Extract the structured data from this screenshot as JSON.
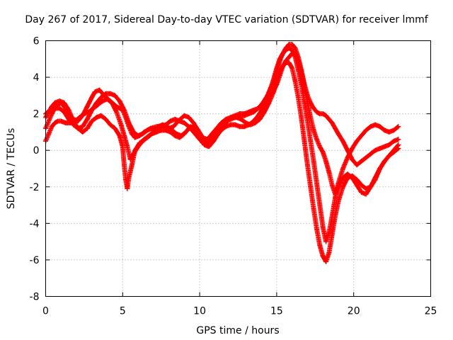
{
  "chart_data": {
    "type": "scatter",
    "title": "Day 267 of 2017, Sidereal Day-to-day VTEC variation (SDTVAR) for receiver lmmf",
    "xlabel": "GPS time / hours",
    "ylabel": "SDTVAR / TECUs",
    "xlim": [
      0,
      25
    ],
    "ylim": [
      -8,
      6
    ],
    "xticks": [
      "0",
      "5",
      "10",
      "15",
      "20",
      "25"
    ],
    "yticks": [
      "-8",
      "-6",
      "-4",
      "-2",
      "0",
      "2",
      "4",
      "6"
    ],
    "grid": true,
    "marker": "+",
    "color": "#ff0000",
    "series": [
      {
        "x": [
          0.0,
          0.2,
          0.4,
          0.6,
          0.8,
          1.0,
          1.2,
          1.5,
          1.8,
          2.1,
          2.4,
          2.7,
          3.0,
          3.2,
          3.5,
          3.8,
          4.2,
          4.6,
          5.0,
          5.2,
          5.4,
          5.6,
          5.8,
          6.1,
          6.4,
          6.8,
          7.2,
          7.6,
          8.0,
          8.3,
          8.6,
          9.0,
          9.3,
          9.6,
          9.9,
          10.2,
          10.5,
          10.8,
          11.1,
          11.4,
          11.7,
          12.0,
          12.3,
          12.6,
          12.9,
          13.2,
          13.5,
          13.8,
          14.1,
          14.4,
          14.7,
          15.0,
          15.2,
          15.4,
          15.6,
          15.8,
          16.0,
          16.2,
          16.4,
          16.6,
          16.8,
          17.0,
          17.2,
          17.4,
          17.6,
          17.8,
          18.0,
          18.2,
          18.4,
          18.6,
          18.8,
          19.0,
          19.3,
          19.6,
          19.9,
          20.2,
          20.5,
          20.8,
          21.1,
          21.4,
          21.7,
          22.0,
          22.3,
          22.6,
          22.9
        ],
        "y": [
          1.2,
          1.6,
          2.0,
          2.3,
          2.5,
          2.6,
          2.4,
          2.0,
          1.7,
          1.6,
          1.9,
          2.4,
          2.9,
          3.2,
          3.3,
          3.0,
          2.7,
          2.4,
          2.2,
          1.8,
          1.3,
          0.9,
          0.7,
          0.8,
          1.0,
          1.2,
          1.3,
          1.3,
          1.2,
          1.3,
          1.6,
          1.9,
          1.8,
          1.5,
          1.1,
          0.7,
          0.6,
          0.9,
          1.2,
          1.5,
          1.7,
          1.8,
          1.9,
          2.0,
          2.0,
          2.1,
          2.2,
          2.3,
          2.5,
          2.9,
          3.6,
          4.5,
          5.0,
          5.3,
          5.6,
          5.8,
          5.8,
          5.6,
          5.1,
          4.4,
          3.6,
          3.0,
          2.6,
          2.3,
          2.1,
          2.0,
          2.0,
          1.9,
          1.7,
          1.5,
          1.2,
          0.9,
          0.5,
          0.0,
          -0.5,
          -0.8,
          -0.6,
          -0.4,
          -0.2,
          0.0,
          0.1,
          0.2,
          0.3,
          0.5,
          0.6
        ]
      },
      {
        "x": [
          0.0,
          0.2,
          0.4,
          0.6,
          0.8,
          1.0,
          1.3,
          1.6,
          1.9,
          2.2,
          2.5,
          2.8,
          3.1,
          3.4,
          3.7,
          4.0,
          4.3,
          4.6,
          4.9,
          5.1,
          5.3,
          5.5,
          5.7,
          6.0,
          6.3,
          6.6,
          6.9,
          7.2,
          7.5,
          7.8,
          8.1,
          8.4,
          8.7,
          9.0,
          9.3,
          9.6,
          9.9,
          10.2,
          10.5,
          10.8,
          11.1,
          11.4,
          11.7,
          12.0,
          12.3,
          12.6,
          12.9,
          13.2,
          13.5,
          13.8,
          14.1,
          14.4,
          14.7,
          15.0,
          15.2,
          15.4,
          15.6,
          15.8,
          16.0,
          16.2,
          16.4,
          16.6,
          16.8,
          17.0,
          17.2,
          17.4,
          17.6,
          17.8,
          18.0,
          18.2,
          18.4,
          18.6,
          18.8,
          19.0,
          19.3,
          19.6,
          19.9,
          20.2,
          20.5,
          20.8,
          21.1,
          21.4,
          21.7,
          22.0,
          22.3,
          22.6,
          22.9
        ],
        "y": [
          0.5,
          0.9,
          1.3,
          1.5,
          1.6,
          1.6,
          1.5,
          1.5,
          1.6,
          1.8,
          2.0,
          2.1,
          2.3,
          2.5,
          2.7,
          2.8,
          2.6,
          2.1,
          1.4,
          0.8,
          0.2,
          -0.5,
          -0.2,
          0.2,
          0.5,
          0.7,
          0.9,
          1.0,
          1.1,
          1.1,
          1.0,
          0.8,
          0.7,
          0.9,
          1.2,
          1.3,
          1.0,
          0.5,
          0.3,
          0.5,
          0.8,
          1.1,
          1.3,
          1.4,
          1.4,
          1.3,
          1.3,
          1.4,
          1.6,
          1.9,
          2.3,
          2.7,
          3.1,
          3.6,
          4.1,
          4.6,
          4.9,
          5.1,
          5.3,
          5.3,
          4.9,
          4.3,
          3.5,
          2.6,
          1.8,
          1.1,
          0.6,
          0.2,
          -0.1,
          -0.6,
          -1.2,
          -1.9,
          -2.4,
          -2.0,
          -1.5,
          -1.3,
          -1.5,
          -1.9,
          -2.3,
          -2.4,
          -2.0,
          -1.5,
          -1.0,
          -0.6,
          -0.3,
          0.0,
          0.3
        ]
      },
      {
        "x": [
          0.0,
          0.2,
          0.4,
          0.6,
          0.9,
          1.2,
          1.5,
          1.8,
          2.1,
          2.4,
          2.7,
          3.0,
          3.3,
          3.6,
          3.9,
          4.2,
          4.5,
          4.8,
          5.0,
          5.1,
          5.2,
          5.3,
          5.4,
          5.6,
          5.8,
          6.1,
          6.4,
          6.7,
          7.0,
          7.3,
          7.6,
          7.9,
          8.2,
          8.5,
          8.8,
          9.1,
          9.4,
          9.7,
          10.0,
          10.3,
          10.6,
          10.9,
          11.2,
          11.5,
          11.8,
          12.1,
          12.4,
          12.7,
          13.0,
          13.3,
          13.6,
          13.9,
          14.2,
          14.5,
          14.8,
          15.0,
          15.2,
          15.4,
          15.6,
          15.8,
          16.0,
          16.2,
          16.4,
          16.6,
          16.8,
          17.0,
          17.2,
          17.4,
          17.6,
          17.8,
          18.0,
          18.2,
          18.4,
          18.6,
          18.8,
          19.0,
          19.3,
          19.6,
          19.9,
          20.2,
          20.5,
          20.8,
          21.1,
          21.4,
          21.7,
          22.0,
          22.3,
          22.6,
          22.9
        ],
        "y": [
          1.8,
          2.1,
          2.4,
          2.6,
          2.7,
          2.6,
          2.2,
          1.6,
          1.2,
          1.0,
          1.2,
          1.6,
          1.8,
          1.9,
          1.7,
          1.4,
          1.2,
          0.8,
          0.2,
          -0.8,
          -1.6,
          -2.1,
          -1.5,
          -0.8,
          0.0,
          0.4,
          0.6,
          0.8,
          1.0,
          1.3,
          1.4,
          1.3,
          1.1,
          0.9,
          0.8,
          1.0,
          1.3,
          1.2,
          0.8,
          0.3,
          0.2,
          0.5,
          0.9,
          1.3,
          1.6,
          1.8,
          1.8,
          1.7,
          1.5,
          1.4,
          1.5,
          1.7,
          2.1,
          2.6,
          3.2,
          3.8,
          4.3,
          4.6,
          4.8,
          4.8,
          4.5,
          3.8,
          2.9,
          1.8,
          0.5,
          -0.8,
          -2.0,
          -3.2,
          -4.3,
          -5.2,
          -5.8,
          -6.1,
          -5.6,
          -4.6,
          -3.6,
          -2.8,
          -2.0,
          -1.5,
          -1.4,
          -1.6,
          -1.9,
          -2.1,
          -2.0,
          -1.6,
          -1.0,
          -0.6,
          -0.3,
          -0.1,
          0.1
        ]
      },
      {
        "x": [
          0.0,
          0.3,
          0.6,
          0.9,
          1.2,
          1.5,
          1.8,
          2.1,
          2.4,
          2.7,
          3.0,
          3.3,
          3.6,
          3.9,
          4.2,
          4.5,
          4.8,
          5.1,
          5.4,
          5.7,
          6.0,
          6.3,
          6.6,
          6.9,
          7.2,
          7.5,
          7.8,
          8.1,
          8.4,
          8.7,
          9.0,
          9.3,
          9.6,
          9.9,
          10.2,
          10.5,
          10.8,
          11.1,
          11.4,
          11.7,
          12.0,
          12.3,
          12.6,
          12.9,
          13.2,
          13.5,
          13.8,
          14.1,
          14.4,
          14.7,
          15.0,
          15.2,
          15.4,
          15.6,
          15.8,
          16.0,
          16.2,
          16.4,
          16.6,
          16.8,
          17.0,
          17.2,
          17.4,
          17.6,
          17.8,
          18.0,
          18.2,
          18.4,
          18.6,
          18.8,
          19.0,
          19.3,
          19.6,
          19.9,
          20.2,
          20.5,
          20.8,
          21.1,
          21.4,
          21.7,
          22.0,
          22.3,
          22.6,
          22.9
        ],
        "y": [
          2.0,
          2.2,
          2.3,
          2.3,
          2.1,
          1.7,
          1.4,
          1.2,
          1.3,
          1.7,
          2.2,
          2.6,
          2.9,
          3.1,
          3.1,
          3.0,
          2.7,
          2.2,
          1.5,
          1.0,
          0.8,
          0.9,
          1.1,
          1.2,
          1.2,
          1.3,
          1.4,
          1.6,
          1.7,
          1.6,
          1.5,
          1.3,
          1.0,
          0.7,
          0.4,
          0.5,
          0.8,
          1.1,
          1.4,
          1.6,
          1.7,
          1.8,
          1.9,
          1.9,
          2.0,
          2.1,
          2.3,
          2.6,
          3.0,
          3.6,
          4.3,
          4.9,
          5.3,
          5.5,
          5.6,
          5.5,
          5.1,
          4.4,
          3.6,
          2.6,
          1.6,
          0.5,
          -0.6,
          -1.8,
          -3.0,
          -4.2,
          -5.0,
          -4.5,
          -3.6,
          -2.6,
          -1.8,
          -1.0,
          -0.4,
          0.1,
          0.5,
          0.8,
          1.1,
          1.3,
          1.4,
          1.3,
          1.1,
          1.0,
          1.1,
          1.3
        ]
      }
    ]
  }
}
